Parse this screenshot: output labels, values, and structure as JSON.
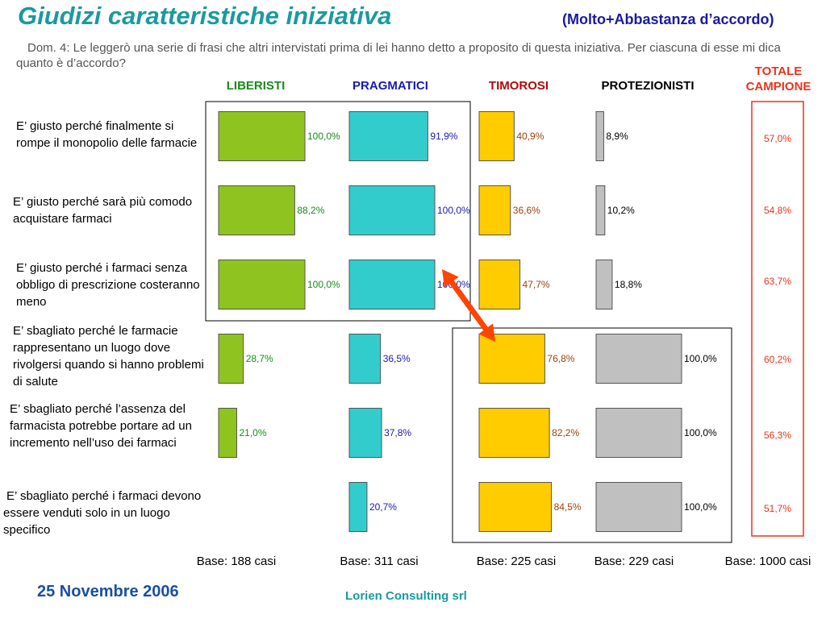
{
  "header": {
    "title": "Giudizi caratteristiche iniziativa",
    "subtitle": "(Molto+Abbastanza d’accordo)",
    "question": "Dom. 4: Le leggerò una serie di frasi che altri intervistati prima di lei hanno detto a proposito di questa iniziativa. Per ciascuna di esse mi dica quanto è d’accordo?"
  },
  "columns": {
    "liberisti": "LIBERISTI",
    "pragmatici": "PRAGMATICI",
    "timorosi": "TIMOROSI",
    "protezionisti": "PROTEZIONISTI",
    "totale": "TOTALE CAMPIONE"
  },
  "statements": [
    "E’ giusto perché finalmente si rompe il monopolio delle farmacie",
    "E’ giusto perché sarà più comodo acquistare farmaci",
    "E’ giusto perché i farmaci senza obbligo di prescrizione costeranno meno",
    "E’ sbagliato perché le farmacie rappresentano un luogo dove rivolgersi quando si hanno problemi di salute",
    "E’ sbagliato perché l’assenza del farmacista potrebbe portare ad un incremento nell’uso dei farmaci",
    "E’ sbagliato perché i farmaci devono essere venduti solo in un luogo specifico"
  ],
  "bases": {
    "liberisti": "Base: 188 casi",
    "pragmatici": "Base: 311 casi",
    "timorosi": "Base: 225 casi",
    "protezionisti": "Base: 229 casi",
    "totale": "Base: 1000 casi"
  },
  "footer": {
    "date": "25 Novembre 2006",
    "company": "Lorien Consulting srl"
  },
  "colors": {
    "liberisti": "#8fc31f",
    "pragmatici": "#33cccc",
    "timorosi": "#ffcc00",
    "protezionisti": "#c0c0c0",
    "liberisti_label": "#1a8a1a",
    "pragmatici_label": "#1a1ab0",
    "timorosi_label": "#a0400a",
    "protezionisti_label": "#000000",
    "totale": "#e8341c",
    "arrow": "#ff4400"
  },
  "chart_data": {
    "type": "bar",
    "orientation": "horizontal",
    "categories": [
      "E’ giusto perché finalmente si rompe il monopolio delle farmacie",
      "E’ giusto perché sarà più comodo acquistare farmaci",
      "E’ giusto perché i farmaci senza obbligo di prescrizione costeranno meno",
      "E’ sbagliato perché le farmacie rappresentano un luogo dove rivolgersi quando si hanno problemi di salute",
      "E’ sbagliato perché l’assenza del farmacista potrebbe portare ad un incremento nell’uso dei farmaci",
      "E’ sbagliato perché i farmaci devono essere venduti solo in un luogo specifico"
    ],
    "series": [
      {
        "name": "LIBERISTI",
        "values": [
          100.0,
          88.2,
          100.0,
          28.7,
          21.0,
          null
        ],
        "labels": [
          "100,0%",
          "88,2%",
          "100,0%",
          "28,7%",
          "21,0%",
          ""
        ]
      },
      {
        "name": "PRAGMATICI",
        "values": [
          91.9,
          100.0,
          100.0,
          36.5,
          37.8,
          20.7
        ],
        "labels": [
          "91,9%",
          "100,0%",
          "100,0%",
          "36,5%",
          "37,8%",
          "20,7%"
        ]
      },
      {
        "name": "TIMOROSI",
        "values": [
          40.9,
          36.6,
          47.7,
          76.8,
          82.2,
          84.5
        ],
        "labels": [
          "40,9%",
          "36,6%",
          "47,7%",
          "76,8%",
          "82,2%",
          "84,5%"
        ]
      },
      {
        "name": "PROTEZIONISTI",
        "values": [
          8.9,
          10.2,
          18.8,
          100.0,
          100.0,
          100.0
        ],
        "labels": [
          "8,9%",
          "10,2%",
          "18,8%",
          "100,0%",
          "100,0%",
          "100,0%"
        ]
      },
      {
        "name": "TOTALE CAMPIONE",
        "values": [
          57.0,
          54.8,
          63.7,
          60.2,
          56.3,
          51.7
        ],
        "labels": [
          "57,0%",
          "54,8%",
          "63,7%",
          "60,2%",
          "56,3%",
          "51,7%"
        ]
      }
    ],
    "unit": "%",
    "xlim": [
      0,
      100
    ]
  }
}
